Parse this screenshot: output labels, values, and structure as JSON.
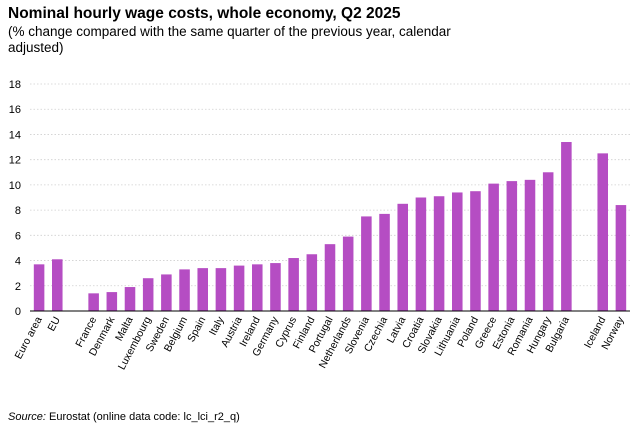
{
  "title": "Nominal hourly wage costs, whole economy, Q2 2025",
  "subtitle": "(% change compared with the same quarter of the previous year, calendar adjusted)",
  "source_label": "Source:",
  "source_text": "Eurostat (online data code: lc_lci_r2_q)",
  "bar_color": "#b54dc3",
  "chart_data": {
    "type": "bar",
    "title": "Nominal hourly wage costs, whole economy, Q2 2025",
    "xlabel": "",
    "ylabel": "",
    "ylim": [
      0,
      18
    ],
    "yticks": [
      0,
      2,
      4,
      6,
      8,
      10,
      12,
      14,
      16,
      18
    ],
    "grid": true,
    "categories": [
      "Euro area",
      "EU",
      "",
      "France",
      "Denmark",
      "Malta",
      "Luxembourg",
      "Sweden",
      "Belgium",
      "Spain",
      "Italy",
      "Austria",
      "Ireland",
      "Germany",
      "Cyprus",
      "Finland",
      "Portugal",
      "Netherlands",
      "Slovenia",
      "Czechia",
      "Latvia",
      "Croatia",
      "Slovakia",
      "Lithuania",
      "Poland",
      "Greece",
      "Estonia",
      "Romania",
      "Hungary",
      "Bulgaria",
      "",
      "Iceland",
      "Norway"
    ],
    "values": [
      3.7,
      4.1,
      null,
      1.4,
      1.5,
      1.9,
      2.6,
      2.9,
      3.3,
      3.4,
      3.4,
      3.6,
      3.7,
      3.8,
      4.2,
      4.5,
      5.3,
      5.9,
      7.5,
      7.7,
      8.5,
      9.0,
      9.1,
      9.4,
      9.5,
      10.1,
      10.3,
      10.4,
      11.0,
      13.4,
      null,
      12.5,
      8.4
    ]
  }
}
